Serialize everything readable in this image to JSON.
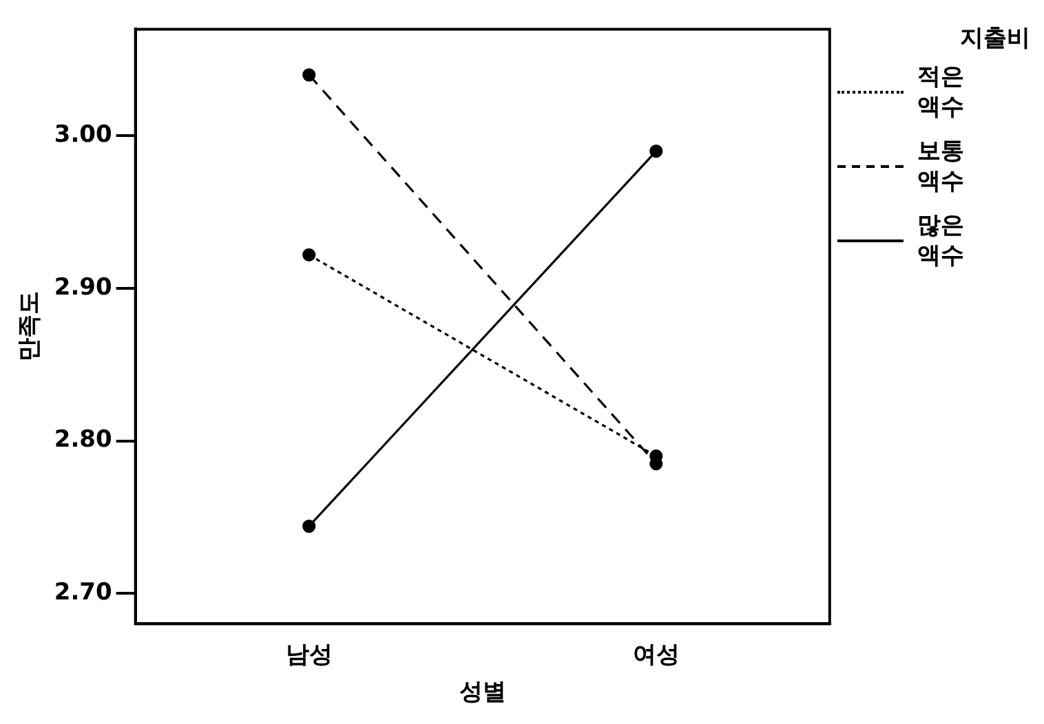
{
  "chart_data": {
    "type": "line",
    "xlabel": "성별",
    "ylabel": "만족도",
    "legend_title": "지출비",
    "legend": "right",
    "grid": false,
    "marker": "circle",
    "categories": [
      "남성",
      "여성"
    ],
    "ylim": [
      2.68,
      3.07
    ],
    "yticks": [
      {
        "value": 2.7,
        "label": "2.70"
      },
      {
        "value": 2.8,
        "label": "2.80"
      },
      {
        "value": 2.9,
        "label": "2.90"
      },
      {
        "value": 3.0,
        "label": "3.00"
      }
    ],
    "series": [
      {
        "name": "적은 액수",
        "color": "#000000",
        "line_style": "dotted",
        "values": [
          2.922,
          2.79
        ]
      },
      {
        "name": "보통 액수",
        "color": "#000000",
        "line_style": "dashed",
        "values": [
          3.04,
          2.785
        ]
      },
      {
        "name": "많은 액수",
        "color": "#000000",
        "line_style": "solid",
        "values": [
          2.744,
          2.99
        ]
      }
    ]
  }
}
